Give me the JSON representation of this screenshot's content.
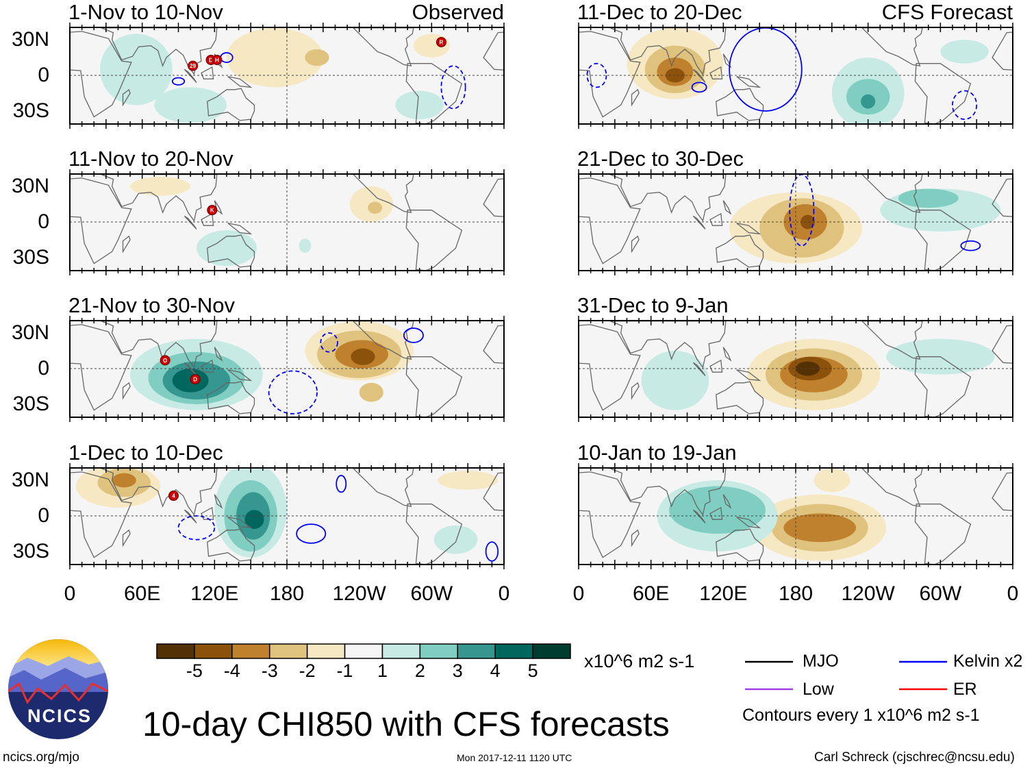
{
  "colors": {
    "levels": [
      "#543005",
      "#8c510a",
      "#bf812d",
      "#dfc27d",
      "#f6e8c3",
      "#f5f5f5",
      "#c7eae5",
      "#80cdc1",
      "#35978f",
      "#01665e",
      "#003c30"
    ],
    "kelvin": "#0000ff",
    "mjo": "#000000",
    "low": "#a040e0",
    "er": "#ff0000",
    "storm": "#cc0000"
  },
  "chart_data": {
    "type": "heatmap",
    "title": "10-day CHI850 with CFS forecasts",
    "units": "x10^6 m2 s-1",
    "lat_ticks": [
      "30N",
      "0",
      "30S"
    ],
    "lon_ticks": [
      "0",
      "60E",
      "120E",
      "180",
      "120W",
      "60W",
      "0"
    ],
    "colorbar_ticks": [
      "-5",
      "-4",
      "-3",
      "-2",
      "-1",
      "1",
      "2",
      "3",
      "4",
      "5"
    ],
    "panels": [
      {
        "title": "1-Nov to 10-Nov",
        "tag": "Observed",
        "col": 0,
        "row": 0,
        "anoms": [
          {
            "lon": 55,
            "lat": 5,
            "rlon": 30,
            "rlat": 30,
            "v": 1
          },
          {
            "lon": 100,
            "lat": -25,
            "rlon": 30,
            "rlat": 15,
            "v": 1
          },
          {
            "lon": 170,
            "lat": 15,
            "rlon": 40,
            "rlat": 25,
            "v": -1
          },
          {
            "lon": 205,
            "lat": 15,
            "rlon": 10,
            "rlat": 7,
            "v": -2
          },
          {
            "lon": 290,
            "lat": -25,
            "rlon": 20,
            "rlat": 12,
            "v": 1
          },
          {
            "lon": 300,
            "lat": 25,
            "rlon": 15,
            "rlat": 10,
            "v": -1
          }
        ],
        "kelvin": [
          {
            "lon": 130,
            "lat": 15,
            "rlon": 5,
            "rlat": 4,
            "solid": true
          },
          {
            "lon": 90,
            "lat": -5,
            "rlon": 5,
            "rlat": 3,
            "solid": true
          },
          {
            "lon": 318,
            "lat": -10,
            "rlon": 10,
            "rlat": 18,
            "solid": false
          }
        ],
        "storms": [
          {
            "lon": 102,
            "lat": 8,
            "label": "29"
          },
          {
            "lon": 117,
            "lat": 13,
            "label": "D"
          },
          {
            "lon": 122,
            "lat": 13,
            "label": "H"
          },
          {
            "lon": 308,
            "lat": 28,
            "label": "R"
          }
        ]
      },
      {
        "title": "11-Nov to 20-Nov",
        "tag": "",
        "col": 0,
        "row": 1,
        "anoms": [
          {
            "lon": 130,
            "lat": -22,
            "rlon": 25,
            "rlat": 15,
            "v": 1
          },
          {
            "lon": 75,
            "lat": 30,
            "rlon": 25,
            "rlat": 8,
            "v": -1
          },
          {
            "lon": 250,
            "lat": 15,
            "rlon": 18,
            "rlat": 15,
            "v": -1
          },
          {
            "lon": 253,
            "lat": 12,
            "rlon": 6,
            "rlat": 5,
            "v": -2
          },
          {
            "lon": 195,
            "lat": -20,
            "rlon": 5,
            "rlat": 6,
            "v": 1
          }
        ],
        "kelvin": [],
        "storms": [
          {
            "lon": 118,
            "lat": 10,
            "label": "K"
          }
        ]
      },
      {
        "title": "21-Nov to 30-Nov",
        "tag": "",
        "col": 0,
        "row": 2,
        "anoms": [
          {
            "lon": 105,
            "lat": -5,
            "rlon": 55,
            "rlat": 30,
            "v": 1
          },
          {
            "lon": 105,
            "lat": -8,
            "rlon": 40,
            "rlat": 22,
            "v": 2
          },
          {
            "lon": 105,
            "lat": -10,
            "rlon": 28,
            "rlat": 16,
            "v": 3
          },
          {
            "lon": 100,
            "lat": -10,
            "rlon": 15,
            "rlat": 10,
            "v": 4
          },
          {
            "lon": 240,
            "lat": 15,
            "rlon": 45,
            "rlat": 25,
            "v": -1
          },
          {
            "lon": 240,
            "lat": 12,
            "rlon": 35,
            "rlat": 20,
            "v": -2
          },
          {
            "lon": 242,
            "lat": 12,
            "rlon": 22,
            "rlat": 12,
            "v": -3
          },
          {
            "lon": 243,
            "lat": 10,
            "rlon": 10,
            "rlat": 7,
            "v": -4
          },
          {
            "lon": 250,
            "lat": -20,
            "rlon": 10,
            "rlat": 8,
            "v": -2
          }
        ],
        "kelvin": [
          {
            "lon": 185,
            "lat": -20,
            "rlon": 20,
            "rlat": 18,
            "solid": false
          },
          {
            "lon": 215,
            "lat": 22,
            "rlon": 7,
            "rlat": 8,
            "solid": false
          },
          {
            "lon": 285,
            "lat": 28,
            "rlon": 8,
            "rlat": 6,
            "solid": true
          }
        ],
        "storms": [
          {
            "lon": 79,
            "lat": 7,
            "label": "O"
          },
          {
            "lon": 104,
            "lat": -9,
            "label": "D"
          }
        ]
      },
      {
        "title": "1-Dec to 10-Dec",
        "tag": "",
        "col": 0,
        "row": 3,
        "anoms": [
          {
            "lon": 150,
            "lat": 5,
            "rlon": 30,
            "rlat": 40,
            "v": 1
          },
          {
            "lon": 150,
            "lat": 0,
            "rlon": 22,
            "rlat": 30,
            "v": 2
          },
          {
            "lon": 152,
            "lat": 0,
            "rlon": 14,
            "rlat": 20,
            "v": 3
          },
          {
            "lon": 153,
            "lat": -3,
            "rlon": 8,
            "rlat": 8,
            "v": 4
          },
          {
            "lon": 40,
            "lat": 25,
            "rlon": 35,
            "rlat": 18,
            "v": -1
          },
          {
            "lon": 45,
            "lat": 28,
            "rlon": 22,
            "rlat": 12,
            "v": -2
          },
          {
            "lon": 45,
            "lat": 30,
            "rlon": 10,
            "rlat": 6,
            "v": -3
          },
          {
            "lon": 320,
            "lat": -20,
            "rlon": 18,
            "rlat": 12,
            "v": 1
          },
          {
            "lon": 330,
            "lat": 30,
            "rlon": 25,
            "rlat": 8,
            "v": -1
          }
        ],
        "kelvin": [
          {
            "lon": 200,
            "lat": -15,
            "rlon": 12,
            "rlat": 8,
            "solid": true
          },
          {
            "lon": 225,
            "lat": 27,
            "rlon": 4,
            "rlat": 7,
            "solid": true
          },
          {
            "lon": 105,
            "lat": -10,
            "rlon": 15,
            "rlat": 10,
            "solid": false
          },
          {
            "lon": 350,
            "lat": -30,
            "rlon": 5,
            "rlat": 8,
            "solid": true
          }
        ],
        "storms": [
          {
            "lon": 86,
            "lat": 17,
            "label": "4"
          }
        ]
      },
      {
        "title": "11-Dec to 20-Dec",
        "tag": "CFS Forecast",
        "col": 1,
        "row": 0,
        "anoms": [
          {
            "lon": 80,
            "lat": 10,
            "rlon": 40,
            "rlat": 30,
            "v": -1
          },
          {
            "lon": 80,
            "lat": 5,
            "rlon": 25,
            "rlat": 20,
            "v": -2
          },
          {
            "lon": 80,
            "lat": 3,
            "rlon": 15,
            "rlat": 12,
            "v": -3
          },
          {
            "lon": 80,
            "lat": 0,
            "rlon": 8,
            "rlat": 6,
            "v": -4
          },
          {
            "lon": 240,
            "lat": -15,
            "rlon": 30,
            "rlat": 30,
            "v": 1
          },
          {
            "lon": 240,
            "lat": -18,
            "rlon": 18,
            "rlat": 15,
            "v": 2
          },
          {
            "lon": 240,
            "lat": -22,
            "rlon": 6,
            "rlat": 6,
            "v": 3
          },
          {
            "lon": 320,
            "lat": 20,
            "rlon": 20,
            "rlat": 10,
            "v": 1
          }
        ],
        "kelvin": [
          {
            "lon": 155,
            "lat": 5,
            "rlon": 30,
            "rlat": 35,
            "solid": true
          },
          {
            "lon": 100,
            "lat": -10,
            "rlon": 6,
            "rlat": 4,
            "solid": true
          },
          {
            "lon": 15,
            "lat": 0,
            "rlon": 8,
            "rlat": 10,
            "solid": false
          },
          {
            "lon": 320,
            "lat": -25,
            "rlon": 10,
            "rlat": 12,
            "solid": false
          }
        ],
        "storms": []
      },
      {
        "title": "21-Dec to 30-Dec",
        "tag": "",
        "col": 1,
        "row": 1,
        "anoms": [
          {
            "lon": 180,
            "lat": -5,
            "rlon": 55,
            "rlat": 30,
            "v": -1
          },
          {
            "lon": 185,
            "lat": -5,
            "rlon": 35,
            "rlat": 25,
            "v": -2
          },
          {
            "lon": 188,
            "lat": 0,
            "rlon": 18,
            "rlat": 15,
            "v": -3
          },
          {
            "lon": 190,
            "lat": 0,
            "rlon": 6,
            "rlat": 6,
            "v": -4
          },
          {
            "lon": 300,
            "lat": 10,
            "rlon": 50,
            "rlat": 18,
            "v": 1
          },
          {
            "lon": 290,
            "lat": 20,
            "rlon": 25,
            "rlat": 8,
            "v": 2
          }
        ],
        "kelvin": [
          {
            "lon": 185,
            "lat": 10,
            "rlon": 10,
            "rlat": 30,
            "solid": false
          },
          {
            "lon": 325,
            "lat": -20,
            "rlon": 8,
            "rlat": 4,
            "solid": true
          }
        ],
        "storms": []
      },
      {
        "title": "31-Dec to 9-Jan",
        "tag": "",
        "col": 1,
        "row": 2,
        "anoms": [
          {
            "lon": 195,
            "lat": -5,
            "rlon": 55,
            "rlat": 30,
            "v": -1
          },
          {
            "lon": 195,
            "lat": -5,
            "rlon": 40,
            "rlat": 22,
            "v": -2
          },
          {
            "lon": 195,
            "lat": -5,
            "rlon": 28,
            "rlat": 15,
            "v": -3
          },
          {
            "lon": 192,
            "lat": 0,
            "rlon": 18,
            "rlat": 10,
            "v": -4
          },
          {
            "lon": 190,
            "lat": 0,
            "rlon": 10,
            "rlat": 6,
            "v": -5
          },
          {
            "lon": 80,
            "lat": -10,
            "rlon": 28,
            "rlat": 25,
            "v": 1
          },
          {
            "lon": 300,
            "lat": 10,
            "rlon": 45,
            "rlat": 15,
            "v": 1
          }
        ],
        "kelvin": [],
        "storms": []
      },
      {
        "title": "10-Jan to 19-Jan",
        "tag": "",
        "col": 1,
        "row": 3,
        "anoms": [
          {
            "lon": 200,
            "lat": -10,
            "rlon": 55,
            "rlat": 28,
            "v": -1
          },
          {
            "lon": 200,
            "lat": -10,
            "rlon": 40,
            "rlat": 20,
            "v": -2
          },
          {
            "lon": 200,
            "lat": -10,
            "rlon": 30,
            "rlat": 12,
            "v": -3
          },
          {
            "lon": 115,
            "lat": 0,
            "rlon": 50,
            "rlat": 30,
            "v": 1
          },
          {
            "lon": 115,
            "lat": 5,
            "rlon": 40,
            "rlat": 20,
            "v": 2
          },
          {
            "lon": 210,
            "lat": 30,
            "rlon": 15,
            "rlat": 10,
            "v": -1
          }
        ],
        "kelvin": [],
        "storms": []
      }
    ]
  },
  "footer": {
    "units": "x10^6 m2 s-1",
    "legend": {
      "mjo": "MJO",
      "kelvin": "Kelvin x2",
      "low": "Low",
      "er": "ER"
    },
    "contours": "Contours every 1 x10^6 m2 s-1",
    "site": "ncics.org/mjo",
    "timestamp": "Mon 2017-12-11 1120 UTC",
    "author": "Carl Schreck (cjschrec@ncsu.edu)",
    "logo_text": "NCICS"
  }
}
